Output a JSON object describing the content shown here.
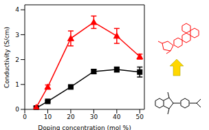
{
  "chart_data": {
    "type": "line",
    "x_label": "Doping concentration (mol %)",
    "y_label": "Conductivity (S/cm)",
    "x": [
      5,
      10,
      20,
      30,
      40,
      50
    ],
    "xlim": [
      0,
      52
    ],
    "xticks": [
      0,
      10,
      20,
      30,
      40,
      50
    ],
    "ylim": [
      0,
      4.2
    ],
    "yticks": [
      0,
      1,
      2,
      3,
      4
    ],
    "grid": false,
    "series": [
      {
        "color": "#000000",
        "marker": "square",
        "values": [
          0.05,
          0.32,
          0.9,
          1.52,
          1.6,
          1.5
        ],
        "errors": [
          0.05,
          0.03,
          0.04,
          0.08,
          0.1,
          0.2
        ]
      },
      {
        "color": "#ff0000",
        "marker": "triangle",
        "values": [
          0.08,
          0.9,
          2.85,
          3.5,
          2.95,
          2.12
        ],
        "errors": [
          0.05,
          0.08,
          0.3,
          0.25,
          0.3,
          0.1
        ]
      }
    ]
  }
}
